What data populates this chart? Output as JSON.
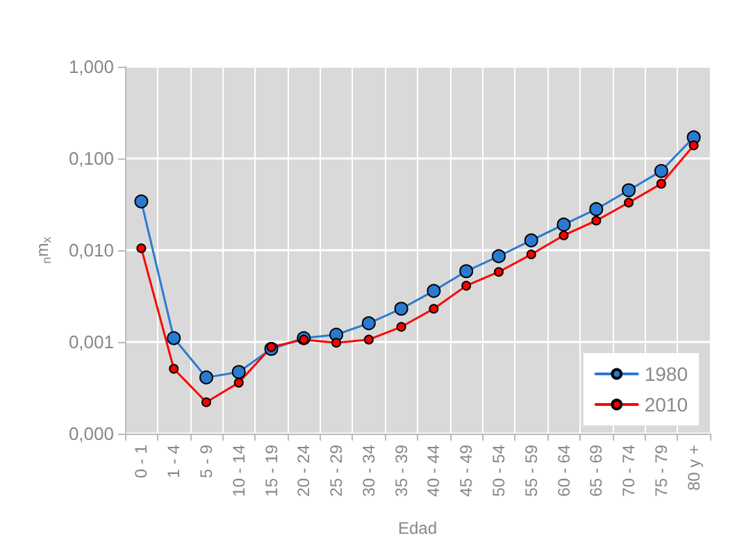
{
  "chart_data": {
    "type": "line",
    "xlabel": "Edad",
    "ylabel": "$_{n}$m$_{x}$",
    "categories": [
      "0 - 1",
      "1 - 4",
      "5 - 9",
      "10 - 14",
      "15 - 19",
      "20 - 24",
      "25 - 29",
      "30 - 34",
      "35 - 39",
      "40 - 44",
      "45 - 49",
      "50 - 54",
      "55 - 59",
      "60 - 64",
      "65 - 69",
      "70 - 74",
      "75 - 79",
      "80 y +"
    ],
    "series": [
      {
        "name": "1980",
        "color": "#2a7ad0",
        "values": [
          0.034,
          0.0011,
          0.00041,
          0.00047,
          0.00084,
          0.0011,
          0.0012,
          0.0016,
          0.0023,
          0.0036,
          0.0059,
          0.0086,
          0.0128,
          0.019,
          0.028,
          0.045,
          0.073,
          0.17
        ]
      },
      {
        "name": "2010",
        "color": "#ff0000",
        "values": [
          0.0105,
          0.00051,
          0.00022,
          0.00036,
          0.00088,
          0.00106,
          0.00098,
          0.00106,
          0.00146,
          0.0023,
          0.0041,
          0.0058,
          0.009,
          0.0145,
          0.021,
          0.033,
          0.053,
          0.139
        ]
      }
    ],
    "log": true,
    "ylim": [
      0.0001,
      1
    ],
    "yticks": [
      {
        "value": 0.0001,
        "label": "0,000"
      },
      {
        "value": 0.001,
        "label": "0,001"
      },
      {
        "value": 0.01,
        "label": "0,010"
      },
      {
        "value": 0.1,
        "label": "0,100"
      },
      {
        "value": 1,
        "label": "1,000"
      }
    ],
    "grid": true,
    "legend": "bottom right",
    "marker": "circle",
    "line_style": "solid"
  }
}
